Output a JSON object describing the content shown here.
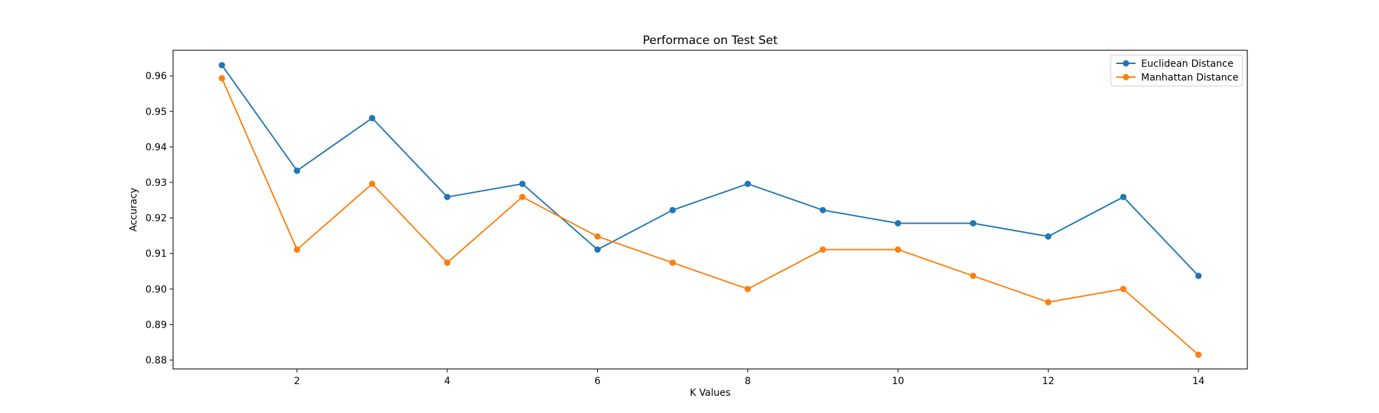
{
  "chart_data": {
    "type": "line",
    "title": "Performace on Test Set",
    "xlabel": "K Values",
    "ylabel": "Accuracy",
    "x": [
      1,
      2,
      3,
      4,
      5,
      6,
      7,
      8,
      9,
      10,
      11,
      12,
      13,
      14
    ],
    "xlim": [
      0.35,
      14.65
    ],
    "ylim": [
      0.8775,
      0.9672
    ],
    "xticks": [
      2,
      4,
      6,
      8,
      10,
      12,
      14
    ],
    "yticks": [
      0.88,
      0.89,
      0.9,
      0.91,
      0.92,
      0.93,
      0.94,
      0.95,
      0.96
    ],
    "ytick_labels": [
      "0.88",
      "0.89",
      "0.90",
      "0.91",
      "0.92",
      "0.93",
      "0.94",
      "0.95",
      "0.96"
    ],
    "grid": false,
    "legend_position": "top-right",
    "series": [
      {
        "name": "Euclidean Distance",
        "color": "#1f77b4",
        "marker": "circle",
        "values": [
          0.963,
          0.9333,
          0.9481,
          0.9259,
          0.9296,
          0.9111,
          0.9222,
          0.9296,
          0.9222,
          0.9185,
          0.9185,
          0.9148,
          0.9259,
          0.9037
        ]
      },
      {
        "name": "Manhattan Distance",
        "color": "#ff7f0e",
        "marker": "circle",
        "values": [
          0.9593,
          0.9111,
          0.9296,
          0.9074,
          0.9259,
          0.9148,
          0.9074,
          0.9,
          0.9111,
          0.9111,
          0.9037,
          0.8963,
          0.9,
          0.8815
        ]
      }
    ]
  }
}
